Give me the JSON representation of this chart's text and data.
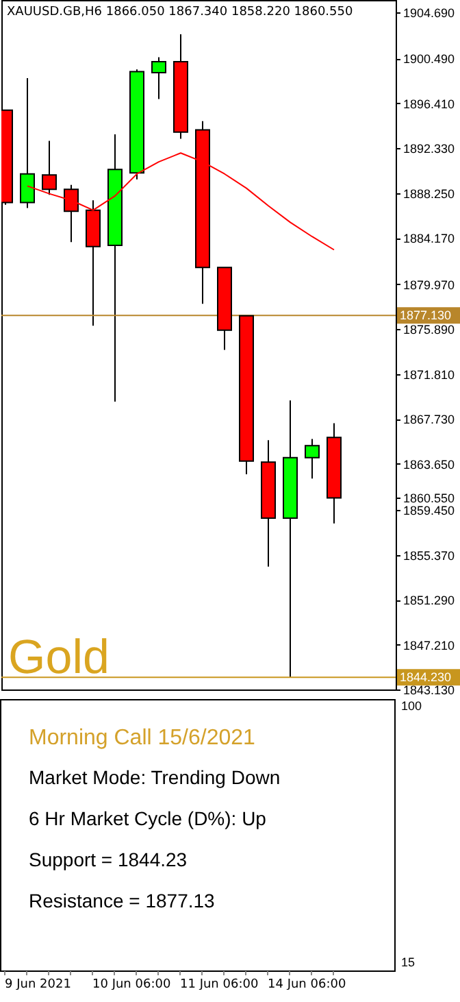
{
  "chart_data": [
    {
      "type": "candlestick",
      "title": "XAUUSD.GB,H6  1866.050 1867.340 1858.220 1860.550",
      "categories": [
        null,
        null,
        null,
        null,
        null,
        null,
        null,
        null,
        null,
        null,
        null,
        null,
        null,
        null,
        null,
        null
      ],
      "ohlc": [
        [
          1895.8,
          1895.8,
          1887.2,
          1887.4
        ],
        [
          1887.4,
          1898.7,
          1886.9,
          1890.0
        ],
        [
          1889.9,
          1893.0,
          1888.1,
          1888.6
        ],
        [
          1888.6,
          1889.0,
          1883.8,
          1886.6
        ],
        [
          1886.7,
          1887.6,
          1876.2,
          1883.4
        ],
        [
          1883.5,
          1893.6,
          1869.3,
          1890.4
        ],
        [
          1890.1,
          1899.5,
          1889.5,
          1899.3
        ],
        [
          1899.2,
          1900.6,
          1896.8,
          1900.2
        ],
        [
          1900.2,
          1902.7,
          1893.2,
          1893.8
        ],
        [
          1894.0,
          1894.8,
          1878.2,
          1881.5
        ],
        [
          1881.5,
          1881.5,
          1874.0,
          1875.8
        ],
        [
          1877.1,
          1877.1,
          1862.7,
          1863.9
        ],
        [
          1863.8,
          1865.8,
          1854.3,
          1858.7
        ],
        [
          1858.7,
          1869.4,
          1844.23,
          1864.2
        ],
        [
          1864.2,
          1865.9,
          1862.3,
          1865.3
        ],
        [
          1866.05,
          1867.34,
          1858.22,
          1860.55
        ]
      ],
      "colors": [
        "#ff0000",
        "#00ff00",
        "#ff0000",
        "#ff0000",
        "#ff0000",
        "#00ff00",
        "#00ff00",
        "#00ff00",
        "#ff0000",
        "#ff0000",
        "#ff0000",
        "#ff0000",
        "#ff0000",
        "#00ff00",
        "#00ff00",
        "#ff0000"
      ],
      "series": [
        {
          "type": "line",
          "color": "#ff0000",
          "values": [
            null,
            1888.9,
            1888.2,
            1887.6,
            1886.7,
            1888.0,
            1890.0,
            1891.1,
            1891.9,
            1891.1,
            1890.0,
            1888.7,
            1887.1,
            1885.6,
            1884.3,
            1883.1
          ]
        }
      ],
      "ylim": [
        1843.13,
        1905.81
      ],
      "yticks": [
        {
          "value": 1904.69,
          "label": "1904.690"
        },
        {
          "value": 1900.49,
          "label": "1900.490"
        },
        {
          "value": 1896.41,
          "label": "1896.410"
        },
        {
          "value": 1892.33,
          "label": "1892.330"
        },
        {
          "value": 1888.25,
          "label": "1888.250"
        },
        {
          "value": 1884.17,
          "label": "1884.170"
        },
        {
          "value": 1879.97,
          "label": "1879.970"
        },
        {
          "value": 1875.89,
          "label": "1875.890"
        },
        {
          "value": 1871.81,
          "label": "1871.810"
        },
        {
          "value": 1867.73,
          "label": "1867.730"
        },
        {
          "value": 1863.65,
          "label": "1863.650"
        },
        {
          "value": 1860.55,
          "label": "1860.550"
        },
        {
          "value": 1859.45,
          "label": "1859.450"
        },
        {
          "value": 1855.37,
          "label": "1855.370"
        },
        {
          "value": 1851.29,
          "label": "1851.290"
        },
        {
          "value": 1847.21,
          "label": "1847.210"
        },
        {
          "value": 1843.13,
          "label": "1843.130"
        }
      ],
      "ref_lines": [
        {
          "axis": "y",
          "value": 1877.13,
          "label": "1877.130",
          "color": "#b8862b"
        },
        {
          "axis": "y",
          "value": 1844.23,
          "label": "1844.230",
          "color": "#c8961e"
        }
      ],
      "annotations": [
        "Gold"
      ]
    },
    {
      "type": "other",
      "categories": [
        "9 Jun 2021",
        null,
        null,
        null,
        "10 Jun 06:00",
        null,
        null,
        null,
        "11 Jun 06:00",
        null,
        null,
        null,
        "14 Jun 06:00",
        null,
        null,
        null
      ],
      "annotations": [
        "Morning Call 15/6/2021",
        "Market Mode: Trending Down",
        "6 Hr Market Cycle (D%): Up",
        "Support = 1844.23",
        "Resistance = 1877.13",
        "100",
        "15"
      ]
    }
  ]
}
